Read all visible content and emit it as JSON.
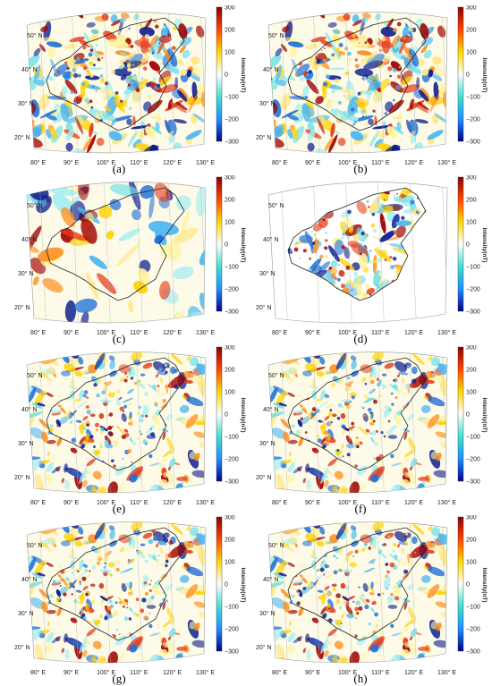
{
  "figure": {
    "panels": [
      {
        "caption": "(a)",
        "variant": "full"
      },
      {
        "caption": "(b)",
        "variant": "full"
      },
      {
        "caption": "(c)",
        "variant": "smooth"
      },
      {
        "caption": "(d)",
        "variant": "land-only"
      },
      {
        "caption": "(e)",
        "variant": "merged"
      },
      {
        "caption": "(f)",
        "variant": "merged"
      },
      {
        "caption": "(g)",
        "variant": "merged"
      },
      {
        "caption": "(h)",
        "variant": "merged"
      }
    ],
    "lat_labels": [
      "20° N",
      "30° N",
      "40° N",
      "50° N"
    ],
    "lon_labels": [
      "80° E",
      "90° E",
      "100° E",
      "110° E",
      "120° E",
      "130° E"
    ],
    "colorbar": {
      "ticks": [
        "300",
        "200",
        "100",
        "0",
        "−100",
        "−200",
        "−300"
      ],
      "label": "Intensity(nT)",
      "colors": [
        "#8b0000",
        "#ff4500",
        "#ffd700",
        "#ffffff",
        "#40e0d0",
        "#1e90ff",
        "#00008b"
      ]
    }
  }
}
